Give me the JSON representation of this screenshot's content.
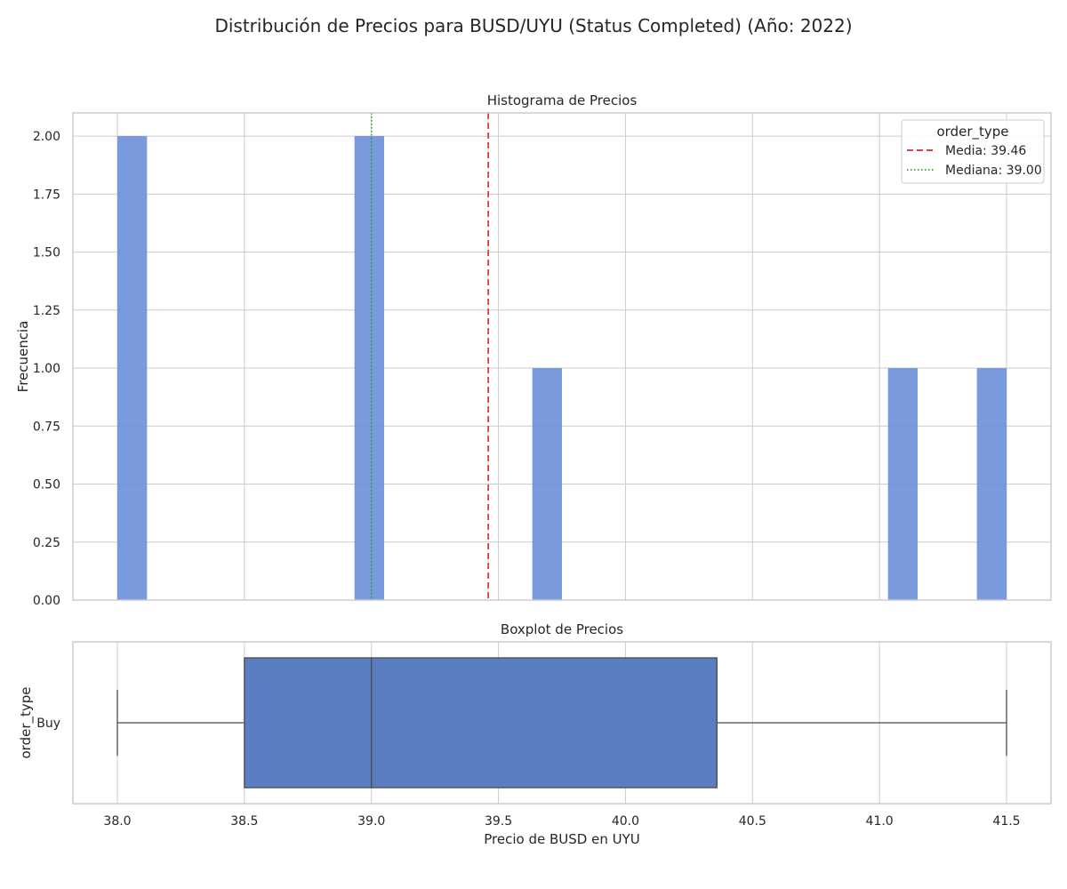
{
  "figure": {
    "suptitle": "Distribución de Precios para BUSD/UYU (Status Completed) (Año: 2022)"
  },
  "chart_data": [
    {
      "type": "bar",
      "subtype": "histogram",
      "title": "Histograma de Precios",
      "xlabel": "",
      "ylabel": "Frecuencia",
      "xlim": [
        37.825,
        41.675
      ],
      "ylim": [
        0,
        2.1
      ],
      "grid": true,
      "xticks": [
        38.0,
        38.5,
        39.0,
        39.5,
        40.0,
        40.5,
        41.0,
        41.5
      ],
      "yticks": [
        0.0,
        0.25,
        0.5,
        0.75,
        1.0,
        1.25,
        1.5,
        1.75,
        2.0
      ],
      "ytick_labels": [
        "0.00",
        "0.25",
        "0.50",
        "0.75",
        "1.00",
        "1.25",
        "1.50",
        "1.75",
        "2.00"
      ],
      "bar_color": "#6a8fd9",
      "bins": [
        {
          "x0": 38.0,
          "x1": 38.1167,
          "count": 2
        },
        {
          "x0": 38.9333,
          "x1": 39.05,
          "count": 2
        },
        {
          "x0": 39.6333,
          "x1": 39.75,
          "count": 1
        },
        {
          "x0": 41.0333,
          "x1": 41.15,
          "count": 1
        },
        {
          "x0": 41.3833,
          "x1": 41.5,
          "count": 1
        }
      ],
      "reference_lines": [
        {
          "name": "Media",
          "value": 39.46,
          "style": "dashed",
          "color": "#d62728"
        },
        {
          "name": "Mediana",
          "value": 39.0,
          "style": "dotted",
          "color": "#2ca02c"
        }
      ],
      "legend": {
        "title": "order_type",
        "position": "top-right",
        "entries": [
          "Media: 39.46",
          "Mediana: 39.00"
        ]
      }
    },
    {
      "type": "boxplot",
      "title": "Boxplot de Precios",
      "xlabel": "Precio de BUSD en UYU",
      "ylabel": "order_type",
      "xlim": [
        37.825,
        41.675
      ],
      "grid": true,
      "category": "Buy",
      "box_color": "#5b7ec2",
      "whisker_low": 38.0,
      "q1": 38.5,
      "median": 39.0,
      "q3": 40.36,
      "whisker_high": 41.5,
      "xticks": [
        38.0,
        38.5,
        39.0,
        39.5,
        40.0,
        40.5,
        41.0,
        41.5
      ],
      "xtick_labels": [
        "38.0",
        "38.5",
        "39.0",
        "39.5",
        "40.0",
        "40.5",
        "41.0",
        "41.5"
      ]
    }
  ]
}
